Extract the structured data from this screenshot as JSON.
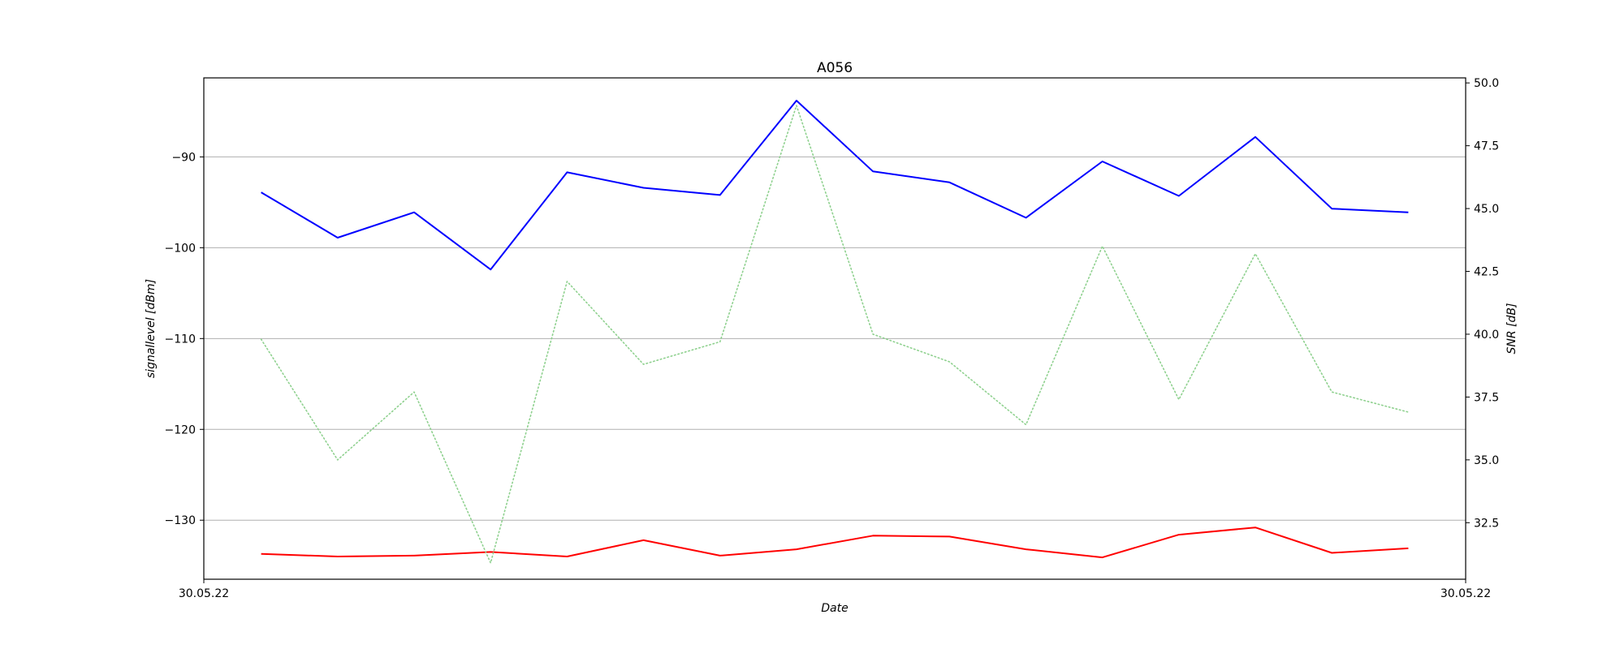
{
  "chart_data": {
    "type": "line",
    "title": "A056",
    "xlabel": "Date",
    "ylabel": "signallevel [dBm]",
    "y2label": "SNR [dB]",
    "x_tick_labels": [
      "30.05.22",
      "30.05.22"
    ],
    "x": [
      1,
      2,
      3,
      4,
      5,
      6,
      7,
      8,
      9,
      10,
      11,
      12,
      13,
      14,
      15,
      16
    ],
    "xlim": [
      0.25,
      16.75
    ],
    "ylim": [
      -136.5,
      -81.3
    ],
    "y2lim": [
      30.25,
      50.2
    ],
    "yticks": [
      -90,
      -100,
      -110,
      -120,
      -130
    ],
    "y2ticks": [
      32.5,
      35.0,
      37.5,
      40.0,
      42.5,
      45.0,
      47.5,
      50.0
    ],
    "y2tick_labels": [
      "32.5",
      "35.0",
      "37.5",
      "40.0",
      "42.5",
      "45.0",
      "47.5",
      "50.0"
    ],
    "grid": "horizontal",
    "series": [
      {
        "axis": "left",
        "color": "#0000ff",
        "style": "solid",
        "values": [
          -93.9,
          -98.9,
          -96.1,
          -102.4,
          -91.7,
          -93.4,
          -94.2,
          -83.8,
          -91.6,
          -92.8,
          -96.7,
          -90.5,
          -94.3,
          -87.8,
          -95.7,
          -96.1
        ]
      },
      {
        "axis": "left",
        "color": "#ff0000",
        "style": "solid",
        "values": [
          -133.7,
          -134.0,
          -133.9,
          -133.5,
          -134.0,
          -132.2,
          -133.9,
          -133.2,
          -131.7,
          -131.8,
          -133.2,
          -134.1,
          -131.6,
          -130.8,
          -133.6,
          -133.1
        ]
      },
      {
        "axis": "right",
        "color": "#8fd18f",
        "style": "dotted",
        "values": [
          39.8,
          35.0,
          37.7,
          30.9,
          42.1,
          38.8,
          39.7,
          49.1,
          40.0,
          38.9,
          36.4,
          43.5,
          37.4,
          43.2,
          37.7,
          36.9
        ]
      }
    ]
  }
}
